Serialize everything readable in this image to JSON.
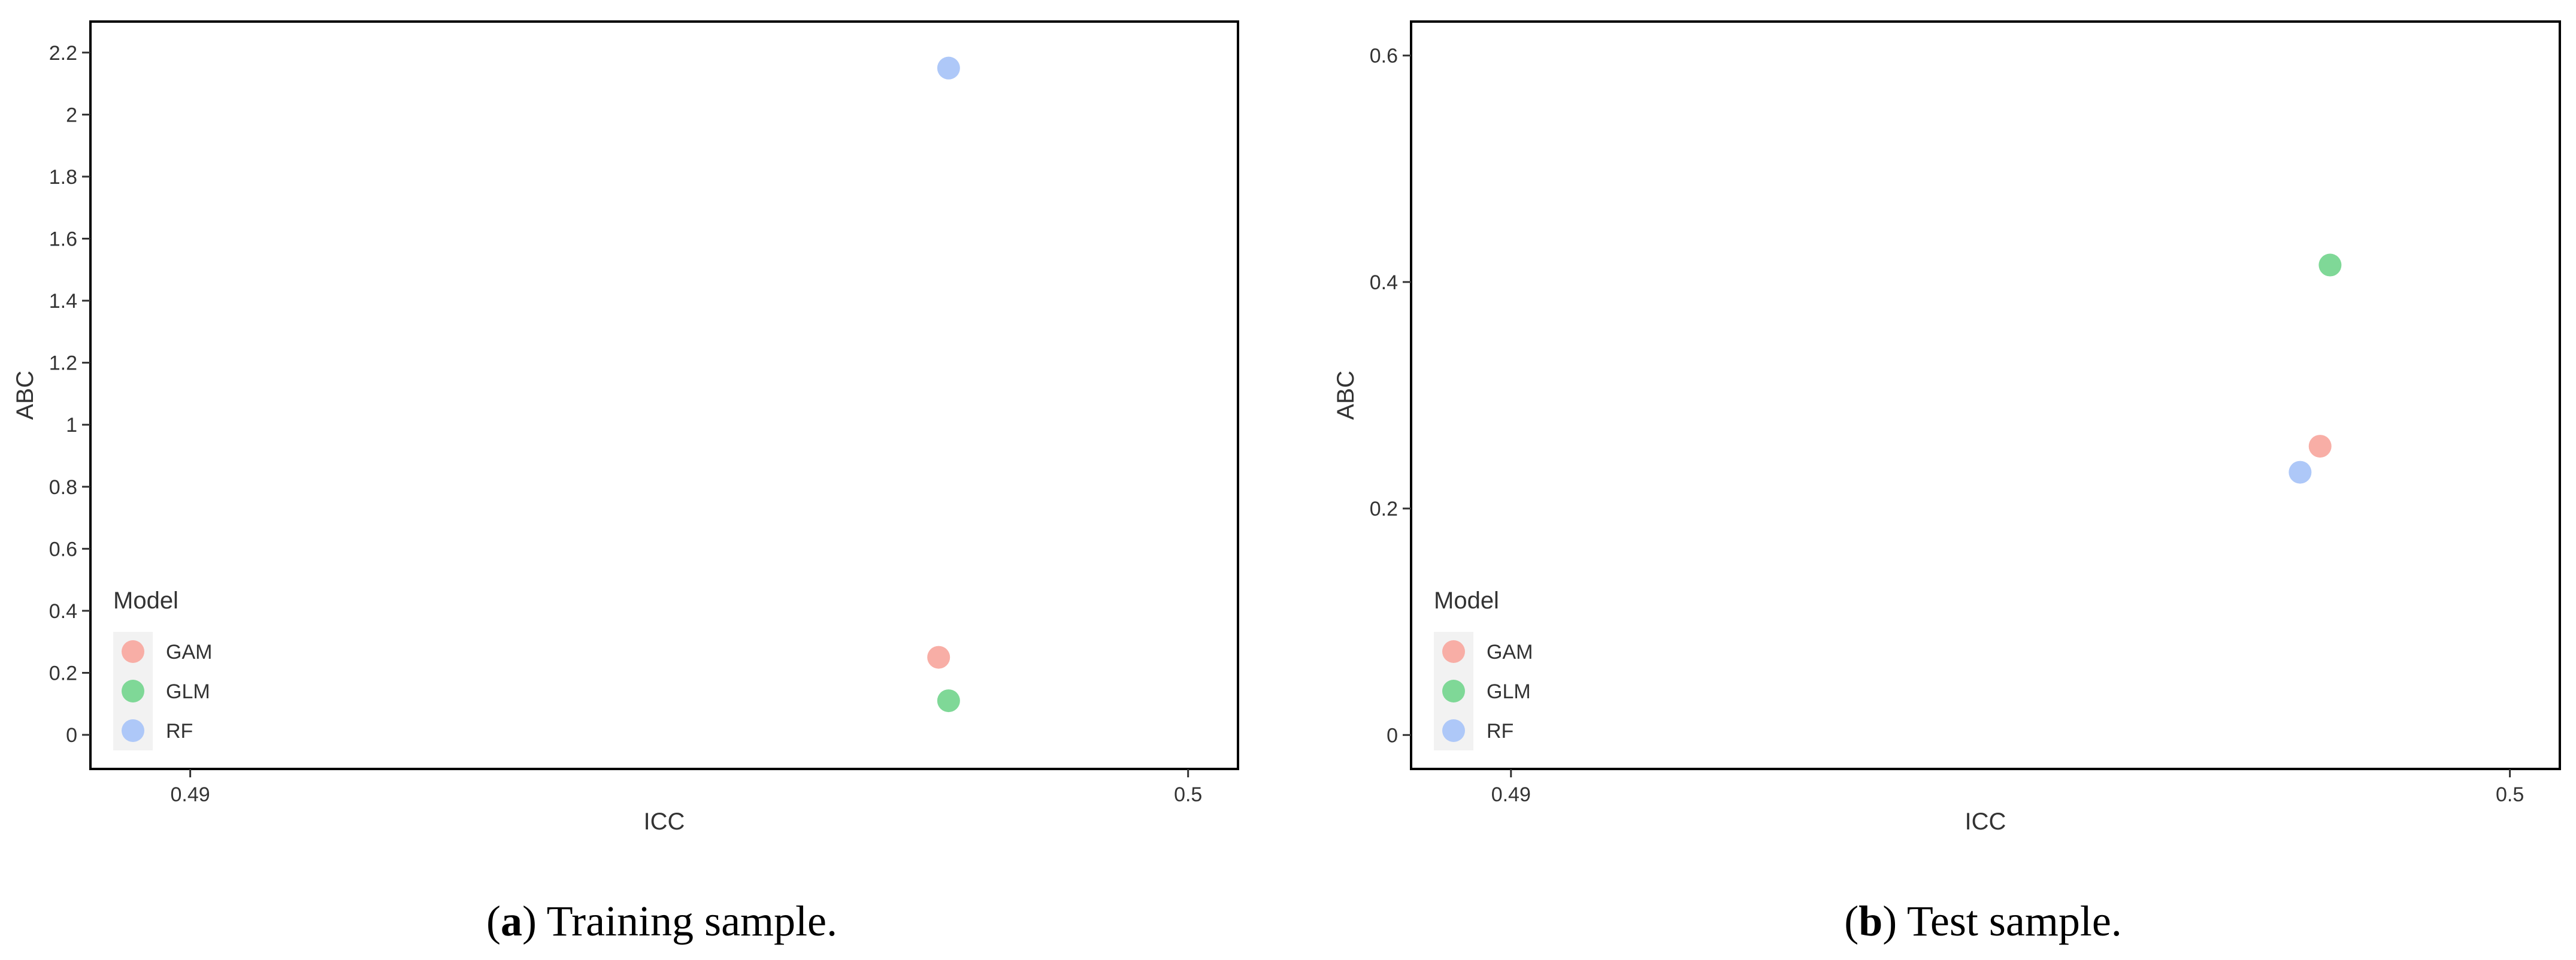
{
  "chart_data": [
    {
      "type": "scatter",
      "xlabel": "ICC",
      "ylabel": "ABC",
      "xlim": [
        0.489,
        0.5005
      ],
      "ylim": [
        -0.11,
        2.3
      ],
      "xticks": [
        0.49,
        0.5
      ],
      "xtick_labels": [
        "0.49",
        "0.5"
      ],
      "yticks": [
        0,
        0.2,
        0.4,
        0.6,
        0.8,
        1,
        1.2,
        1.4,
        1.6,
        1.8,
        2,
        2.2
      ],
      "ytick_labels": [
        "0",
        "0.2",
        "0.4",
        "0.6",
        "0.8",
        "1",
        "1.2",
        "1.4",
        "1.6",
        "1.8",
        "2",
        "2.2"
      ],
      "grid": false,
      "legend": {
        "title": "Model",
        "position": "bottom-left"
      },
      "series": [
        {
          "name": "GAM",
          "color": "#f8aea6",
          "points": [
            {
              "x": 0.4975,
              "y": 0.25
            }
          ]
        },
        {
          "name": "GLM",
          "color": "#7fd897",
          "points": [
            {
              "x": 0.4976,
              "y": 0.11
            }
          ]
        },
        {
          "name": "RF",
          "color": "#aec8f8",
          "points": [
            {
              "x": 0.4976,
              "y": 2.15
            }
          ]
        }
      ],
      "caption": {
        "letter": "a",
        "text": ") Training sample.",
        "open": "("
      }
    },
    {
      "type": "scatter",
      "xlabel": "ICC",
      "ylabel": "ABC",
      "xlim": [
        0.489,
        0.5005
      ],
      "ylim": [
        -0.03,
        0.63
      ],
      "xticks": [
        0.49,
        0.5
      ],
      "xtick_labels": [
        "0.49",
        "0.5"
      ],
      "yticks": [
        0,
        0.2,
        0.4,
        0.6
      ],
      "ytick_labels": [
        "0",
        "0.2",
        "0.4",
        "0.6"
      ],
      "grid": false,
      "legend": {
        "title": "Model",
        "position": "bottom-left"
      },
      "series": [
        {
          "name": "GAM",
          "color": "#f8aea6",
          "points": [
            {
              "x": 0.4981,
              "y": 0.255
            }
          ]
        },
        {
          "name": "GLM",
          "color": "#7fd897",
          "points": [
            {
              "x": 0.4982,
              "y": 0.415
            }
          ]
        },
        {
          "name": "RF",
          "color": "#aec8f8",
          "points": [
            {
              "x": 0.4979,
              "y": 0.232
            }
          ]
        }
      ],
      "caption": {
        "letter": "b",
        "text": ") Test sample.",
        "open": "("
      }
    }
  ]
}
